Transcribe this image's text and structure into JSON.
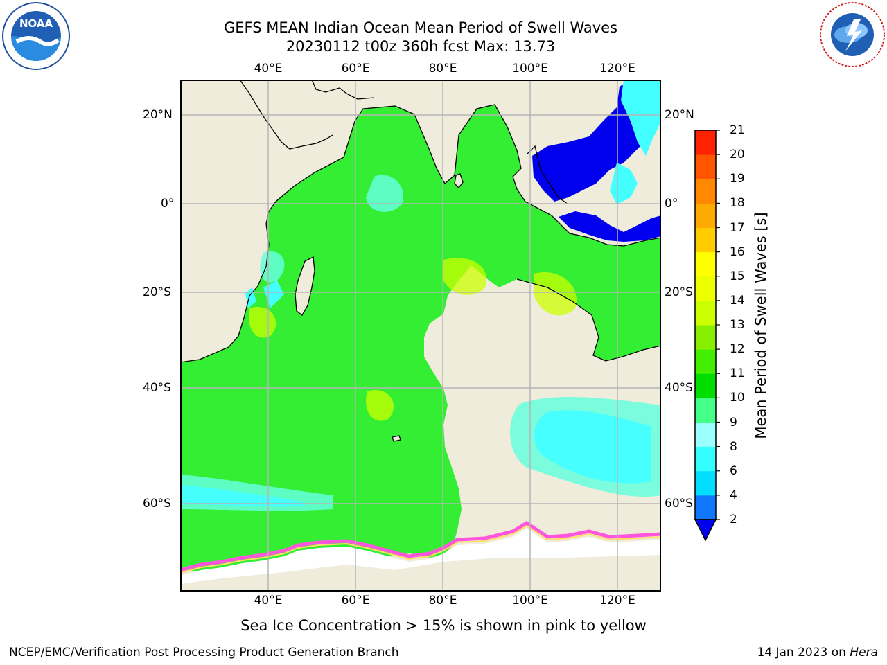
{
  "header": {
    "title_line1": "GEFS MEAN Indian Ocean Mean Period of Swell Waves",
    "title_line2": "20230112 t00z 360h fcst   Max: 13.73"
  },
  "logos": {
    "left": {
      "name": "noaa-logo",
      "text": "NOAA",
      "ring_text": "NATIONAL OCEANIC AND ATMOSPHERIC ADMINISTRATION · U.S. DEPARTMENT OF COMMERCE"
    },
    "right": {
      "name": "nws-logo",
      "ring_text": "NATIONAL WEATHER SERVICE"
    }
  },
  "map": {
    "lon_ticks": [
      "40°E",
      "60°E",
      "80°E",
      "100°E",
      "120°E"
    ],
    "lat_ticks": [
      "20°N",
      "0°",
      "20°S",
      "40°S",
      "60°S"
    ],
    "extent": {
      "lon": [
        20,
        130
      ],
      "lat": [
        -77,
        27
      ]
    },
    "colors": {
      "land": "#efecdc",
      "ocean": "#33ee33",
      "grid": "#b5b5b5"
    }
  },
  "colorbar": {
    "title": "Mean Period of Swell Waves [s]",
    "levels": [
      "2",
      "4",
      "6",
      "8",
      "9",
      "10",
      "11",
      "12",
      "13",
      "14",
      "15",
      "16",
      "17",
      "18",
      "19",
      "20",
      "21"
    ],
    "colors": [
      "#1177ff",
      "#00ddff",
      "#33ffff",
      "#99ffff",
      "#44ff88",
      "#00dd00",
      "#44ee00",
      "#88ee00",
      "#ccff00",
      "#eeff00",
      "#ffff00",
      "#ffcc00",
      "#ffaa00",
      "#ff8800",
      "#ff5500",
      "#ff2200"
    ],
    "under_color": "#0000ee"
  },
  "note": "Sea Ice Concentration > 15% is shown in pink to yellow",
  "footer": {
    "left": "NCEP/EMC/Verification Post Processing Product Generation Branch",
    "right_prefix": "14 Jan 2023 on ",
    "right_host": "Hera"
  }
}
